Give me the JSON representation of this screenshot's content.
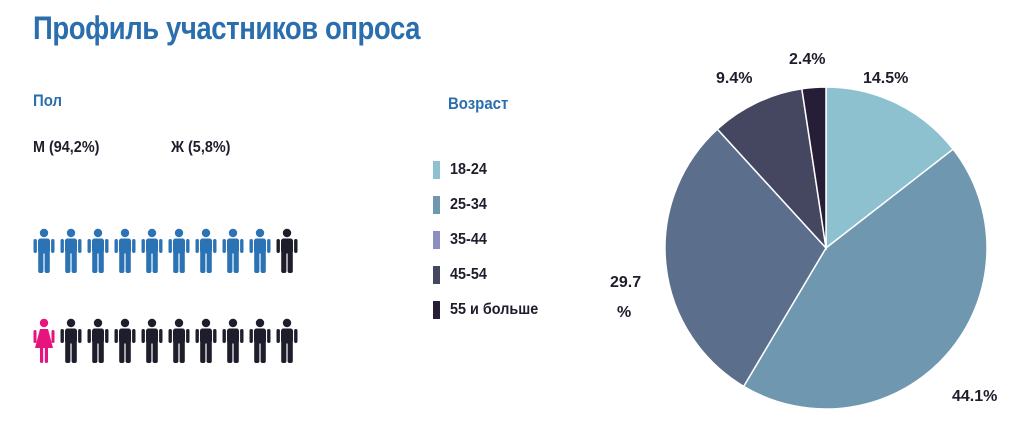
{
  "title": "Профиль участников опроса",
  "gender": {
    "label": "Пол",
    "male_text": "М (94,2%)",
    "female_text": "Ж (5,8%)",
    "male_row": {
      "highlighted": 9,
      "total": 10,
      "highlight_color": "#2b73b5",
      "base_color": "#1d1d2b"
    },
    "female_row": {
      "highlighted": 1,
      "total": 10,
      "highlight_color": "#e6157e",
      "base_color": "#1d1d2b"
    }
  },
  "chart_data": {
    "type": "pie",
    "legend_title": "Возраст",
    "legend_placement": "left",
    "slices": [
      {
        "label": "18-24",
        "value": 14.5,
        "value_label": "14.5%",
        "color": "#8ec1d0"
      },
      {
        "label": "25-34",
        "value": 44.1,
        "value_label": "44.1%",
        "color": "#6f98b0"
      },
      {
        "label": "35-44",
        "value": 29.7,
        "value_label_line1": "29.7",
        "value_label_line2": "%",
        "color": "#5b6f8c"
      },
      {
        "label": "45-54",
        "value": 9.4,
        "value_label": "9.4%",
        "color": "#454760"
      },
      {
        "label": "55 и больше",
        "value": 2.4,
        "value_label": "2.4%",
        "color": "#261e36"
      }
    ],
    "legend_swatch_colors": [
      "#8ec1d0",
      "#6f98b0",
      "#8a8fc0",
      "#454760",
      "#261e36"
    ]
  }
}
